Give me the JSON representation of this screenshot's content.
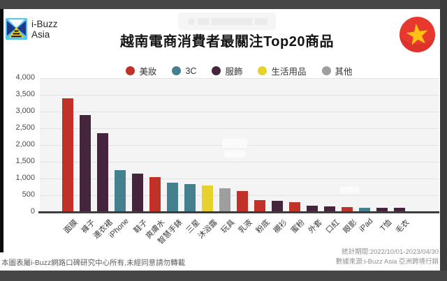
{
  "header": {
    "brand_line1": "i-Buzz",
    "brand_line2": "Asia",
    "title": "越南電商消費者最關注Top20商品"
  },
  "colors": {
    "beauty_red": "#c23127",
    "tech_teal": "#45808f",
    "apparel_plum": "#45253b",
    "daily_yellow": "#e7d22c",
    "other_gray": "#9e9e9e",
    "flag_red": "#e8392f",
    "flag_star_yellow": "#fdc116",
    "frame_dark": "#464646"
  },
  "chart_data": {
    "type": "bar",
    "title": "越南電商消費者最關注Top20商品",
    "xlabel": "",
    "ylabel": "",
    "ylim": [
      0,
      4000
    ],
    "ytick_interval": 500,
    "yticklabels": [
      "0",
      "500",
      "1,000",
      "1,500",
      "2,000",
      "2,500",
      "3,000",
      "3,500",
      "4,000"
    ],
    "grid": true,
    "legend_position": "top",
    "legend": [
      {
        "label": "美妝",
        "color": "#c23127"
      },
      {
        "label": "3C",
        "color": "#45808f"
      },
      {
        "label": "服飾",
        "color": "#45253b"
      },
      {
        "label": "生活用品",
        "color": "#e7d22c"
      },
      {
        "label": "其他",
        "color": "#9e9e9e"
      }
    ],
    "categories": [
      "面膜",
      "褲子",
      "連衣裙",
      "iPhone",
      "鞋子",
      "爽膚水",
      "智慧手錶",
      "三星",
      "沐浴露",
      "玩具",
      "乳液",
      "粉底",
      "襯衫",
      "蜜粉",
      "外套",
      "口紅",
      "眼影",
      "iPad",
      "T恤",
      "毛衣"
    ],
    "values": [
      3400,
      2900,
      2350,
      1250,
      1150,
      1050,
      880,
      830,
      790,
      700,
      630,
      350,
      330,
      300,
      190,
      175,
      155,
      135,
      120,
      120
    ],
    "bar_colors": [
      "#c23127",
      "#45253b",
      "#45253b",
      "#45808f",
      "#45253b",
      "#c23127",
      "#45808f",
      "#45808f",
      "#e7d22c",
      "#9e9e9e",
      "#c23127",
      "#c23127",
      "#45253b",
      "#c23127",
      "#45253b",
      "#45253b",
      "#c23127",
      "#45808f",
      "#45253b",
      "#45253b"
    ]
  },
  "footer": {
    "left": "本圖表屬i-Buzz網路口碑研究中心所有,未經同意請勿轉載",
    "right_line1": "統計期間:2022/10/01-2023/04/30",
    "right_line2": "數據來源:i-Buzz Asia 亞洲跨境行銷"
  }
}
